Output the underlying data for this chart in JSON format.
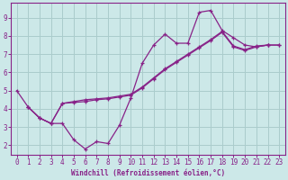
{
  "line1_x": [
    0,
    1,
    2,
    3,
    4,
    5,
    6,
    7,
    8,
    9,
    10,
    11,
    12,
    13,
    14,
    15,
    16,
    17,
    18,
    19,
    20,
    21,
    22
  ],
  "line1_y": [
    5.0,
    4.1,
    3.5,
    3.2,
    3.2,
    2.3,
    1.8,
    2.2,
    2.1,
    3.1,
    4.6,
    6.5,
    7.5,
    8.1,
    7.6,
    7.6,
    9.3,
    9.4,
    8.3,
    7.9,
    7.5,
    7.4,
    7.5
  ],
  "line2_x": [
    1,
    2,
    3,
    4,
    5,
    6,
    7,
    8,
    9,
    10,
    11,
    12,
    13,
    14,
    15,
    16,
    17,
    18,
    19,
    20,
    21,
    22,
    23
  ],
  "line2_y": [
    4.1,
    3.5,
    3.2,
    4.3,
    4.35,
    4.4,
    4.5,
    4.55,
    4.65,
    4.75,
    5.15,
    5.65,
    6.15,
    6.55,
    6.95,
    7.35,
    7.75,
    8.2,
    7.4,
    7.2,
    7.4,
    7.5,
    7.5
  ],
  "line3_x": [
    1,
    2,
    3,
    4,
    5,
    6,
    7,
    8,
    9,
    10,
    11,
    12,
    13,
    14,
    15,
    16,
    17,
    18,
    19,
    20,
    21,
    22,
    23
  ],
  "line3_y": [
    4.1,
    3.5,
    3.2,
    4.3,
    4.4,
    4.5,
    4.55,
    4.6,
    4.7,
    4.8,
    5.2,
    5.7,
    6.2,
    6.6,
    7.0,
    7.4,
    7.8,
    8.25,
    7.45,
    7.25,
    7.45,
    7.5,
    7.5
  ],
  "color": "#882288",
  "bg_color": "#cce8e8",
  "grid_color": "#aacccc",
  "axis_color": "#882288",
  "text_color": "#882288",
  "xlabel": "Windchill (Refroidissement éolien,°C)",
  "ylim": [
    1.5,
    9.8
  ],
  "xlim": [
    -0.5,
    23.5
  ],
  "yticks": [
    2,
    3,
    4,
    5,
    6,
    7,
    8,
    9
  ],
  "xticks": [
    0,
    1,
    2,
    3,
    4,
    5,
    6,
    7,
    8,
    9,
    10,
    11,
    12,
    13,
    14,
    15,
    16,
    17,
    18,
    19,
    20,
    21,
    22,
    23
  ]
}
